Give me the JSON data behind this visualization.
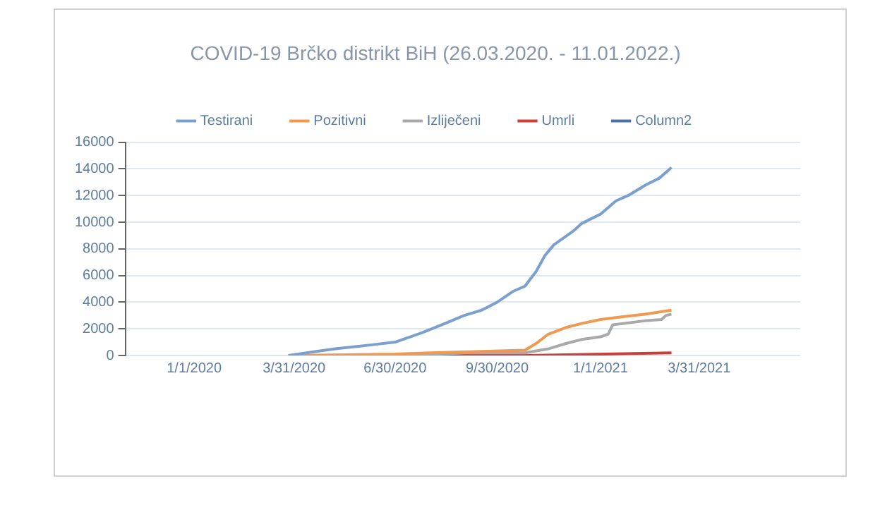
{
  "chart_data": {
    "type": "line",
    "title": "COVID-19 Brčko distrikt BiH (26.03.2020. - 11.01.2022.)",
    "xlim": [
      "2019-10-31",
      "2021-06-30"
    ],
    "xticks": [
      {
        "value": "2020-01-01",
        "label": "1/1/2020"
      },
      {
        "value": "2020-03-31",
        "label": "3/31/2020"
      },
      {
        "value": "2020-06-30",
        "label": "6/30/2020"
      },
      {
        "value": "2020-09-30",
        "label": "9/30/2020"
      },
      {
        "value": "2021-01-01",
        "label": "1/1/2021"
      },
      {
        "value": "2021-03-31",
        "label": "3/31/2021"
      }
    ],
    "ylim": [
      0,
      16000
    ],
    "yticks": [
      0,
      2000,
      4000,
      6000,
      8000,
      10000,
      12000,
      14000,
      16000
    ],
    "grid": "y",
    "legend": "top",
    "marker": "none",
    "series": [
      {
        "name": "Testirani",
        "color": "#7ba0cf",
        "x": [
          "2020-03-26",
          "2020-04-20",
          "2020-05-07",
          "2020-06-09",
          "2020-06-30",
          "2020-07-24",
          "2020-08-14",
          "2020-08-31",
          "2020-09-16",
          "2020-09-30",
          "2020-10-14",
          "2020-10-25",
          "2020-11-04",
          "2020-11-12",
          "2020-11-20",
          "2020-12-07",
          "2020-12-15",
          "2021-01-01",
          "2021-01-15",
          "2021-01-26",
          "2021-02-11",
          "2021-02-23",
          "2021-03-06"
        ],
        "values": [
          0,
          300,
          500,
          800,
          1000,
          1700,
          2400,
          3000,
          3400,
          4000,
          4800,
          5200,
          6300,
          7500,
          8300,
          9300,
          9900,
          10600,
          11600,
          12000,
          12800,
          13300,
          14100
        ]
      },
      {
        "name": "Pozitivni",
        "color": "#ee9a52",
        "x": [
          "2020-03-26",
          "2020-06-30",
          "2020-08-01",
          "2020-10-25",
          "2020-11-04",
          "2020-11-15",
          "2020-12-01",
          "2020-12-15",
          "2021-01-01",
          "2021-01-20",
          "2021-02-10",
          "2021-03-06"
        ],
        "values": [
          0,
          100,
          200,
          400,
          900,
          1600,
          2100,
          2400,
          2700,
          2900,
          3100,
          3400
        ]
      },
      {
        "name": "Izliječeni",
        "color": "#a9a9a9",
        "x": [
          "2020-03-26",
          "2020-07-15",
          "2020-09-01",
          "2020-10-25",
          "2020-11-15",
          "2020-12-01",
          "2020-12-15",
          "2021-01-01",
          "2021-01-08",
          "2021-01-12",
          "2021-02-10",
          "2021-02-25",
          "2021-03-01",
          "2021-03-06"
        ],
        "values": [
          0,
          0,
          200,
          200,
          500,
          900,
          1200,
          1400,
          1600,
          2300,
          2600,
          2700,
          3000,
          3100
        ]
      },
      {
        "name": "Umrli",
        "color": "#c9403a",
        "x": [
          "2020-03-26",
          "2020-10-25",
          "2021-03-06"
        ],
        "values": [
          0,
          0,
          200
        ]
      },
      {
        "name": "Column2",
        "color": "#4f6fa8"
      }
    ]
  }
}
